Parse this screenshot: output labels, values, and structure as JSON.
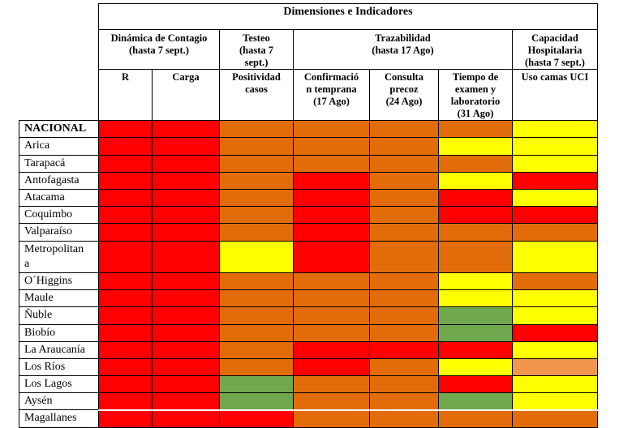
{
  "title": "Dimensiones e Indicadores",
  "groups": [
    {
      "label": "Dinámica de Contagio\n(hasta 7 sept.)"
    },
    {
      "label": "Testeo\n(hasta 7\nsept.)"
    },
    {
      "label": "Trazabilidad\n(hasta 17 Ago)"
    },
    {
      "label": "Capacidad\nHospitalaria\n(hasta 7 sept.)"
    }
  ],
  "columns": [
    "R",
    "Carga",
    "Positividad\ncasos",
    "Confirmació\nn temprana\n(17 Ago)",
    "Consulta\nprecoz\n(24 Ago)",
    "Tiempo de\nexamen y\nlaboratorio\n(31 Ago)",
    "Uso camas UCI"
  ],
  "colors": {
    "red": "#FF0000",
    "orange": "#E36C0A",
    "yellow": "#FFFF00",
    "green": "#6FA84F",
    "light_orange": "#F0964E"
  },
  "rows": [
    {
      "region": "NACIONAL",
      "bold": true,
      "cells": [
        "red",
        "red",
        "orange",
        "orange",
        "orange",
        "orange",
        "yellow"
      ]
    },
    {
      "region": "Arica",
      "bold": false,
      "cells": [
        "red",
        "red",
        "orange",
        "orange",
        "orange",
        "yellow",
        "yellow"
      ]
    },
    {
      "region": "Tarapacá",
      "bold": false,
      "cells": [
        "red",
        "red",
        "orange",
        "orange",
        "orange",
        "orange",
        "yellow"
      ]
    },
    {
      "region": "Antofagasta",
      "bold": false,
      "cells": [
        "red",
        "red",
        "orange",
        "red",
        "orange",
        "yellow",
        "red"
      ]
    },
    {
      "region": "Atacama",
      "bold": false,
      "cells": [
        "red",
        "red",
        "orange",
        "red",
        "orange",
        "red",
        "yellow"
      ]
    },
    {
      "region": "Coquimbo",
      "bold": false,
      "cells": [
        "red",
        "red",
        "orange",
        "red",
        "orange",
        "red",
        "red"
      ]
    },
    {
      "region": "Valparaíso",
      "bold": false,
      "cells": [
        "red",
        "red",
        "orange",
        "red",
        "orange",
        "orange",
        "orange"
      ]
    },
    {
      "region": "Metropolitan\na",
      "bold": false,
      "cells": [
        "red",
        "red",
        "yellow",
        "red",
        "orange",
        "orange",
        "yellow"
      ]
    },
    {
      "region": "O´Higgins",
      "bold": false,
      "cells": [
        "red",
        "red",
        "orange",
        "orange",
        "orange",
        "yellow",
        "orange"
      ]
    },
    {
      "region": "Maule",
      "bold": false,
      "cells": [
        "red",
        "red",
        "orange",
        "orange",
        "orange",
        "yellow",
        "yellow"
      ]
    },
    {
      "region": "Ñuble",
      "bold": false,
      "cells": [
        "red",
        "red",
        "orange",
        "orange",
        "orange",
        "green",
        "yellow"
      ]
    },
    {
      "region": "Biobío",
      "bold": false,
      "cells": [
        "red",
        "red",
        "orange",
        "orange",
        "orange",
        "green",
        "red"
      ]
    },
    {
      "region": "La Araucanía",
      "bold": false,
      "cells": [
        "red",
        "red",
        "orange",
        "red",
        "red",
        "red",
        "yellow"
      ]
    },
    {
      "region": "Los Ríos",
      "bold": false,
      "cells": [
        "red",
        "red",
        "orange",
        "red",
        "orange",
        "yellow",
        "light_orange"
      ]
    },
    {
      "region": "Los Lagos",
      "bold": false,
      "cells": [
        "red",
        "red",
        "green",
        "orange",
        "orange",
        "red",
        "yellow"
      ]
    },
    {
      "region": "Aysén",
      "bold": false,
      "cells": [
        "red",
        "red",
        "green",
        "orange",
        "orange",
        "green",
        "yellow"
      ]
    },
    {
      "region": "Magallanes",
      "bold": false,
      "light_top": true,
      "cells": [
        "red",
        "red",
        "red",
        "orange",
        "orange",
        "orange",
        "orange"
      ]
    }
  ]
}
